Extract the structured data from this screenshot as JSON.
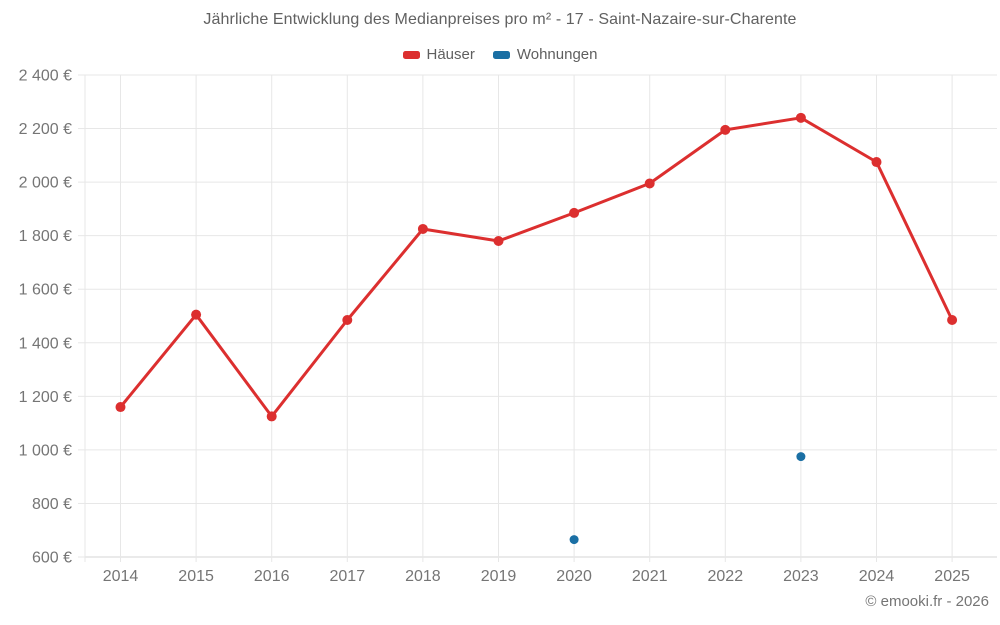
{
  "chart_data": {
    "type": "line",
    "title": "Jährliche Entwicklung des Medianpreises pro m² - 17 - Saint-Nazaire-sur-Charente",
    "categories": [
      "2014",
      "2015",
      "2016",
      "2017",
      "2018",
      "2019",
      "2020",
      "2021",
      "2022",
      "2023",
      "2024",
      "2025"
    ],
    "series": [
      {
        "name": "Häuser",
        "color": "#dc2f2f",
        "marker_radius": 5,
        "values": [
          1160,
          1505,
          1125,
          1485,
          1825,
          1780,
          1885,
          1995,
          2195,
          2240,
          2075,
          1485
        ]
      },
      {
        "name": "Wohnungen",
        "color": "#1a6fa4",
        "marker_radius": 4.5,
        "values": [
          null,
          null,
          null,
          null,
          null,
          null,
          665,
          null,
          null,
          975,
          null,
          null
        ]
      }
    ],
    "ylim": [
      600,
      2400
    ],
    "y_tick_step": 200,
    "y_tick_labels": [
      "600 €",
      "800 €",
      "1 000 €",
      "1 200 €",
      "1 400 €",
      "1 600 €",
      "1 800 €",
      "2 000 €",
      "2 200 €",
      "2 400 €"
    ],
    "grid": true,
    "legend_position": "top",
    "colors": {
      "grid": "#e7e7e7",
      "axis": "#d6d6d6",
      "tick_text": "#757575"
    }
  },
  "footer": "© emooki.fr - 2026"
}
